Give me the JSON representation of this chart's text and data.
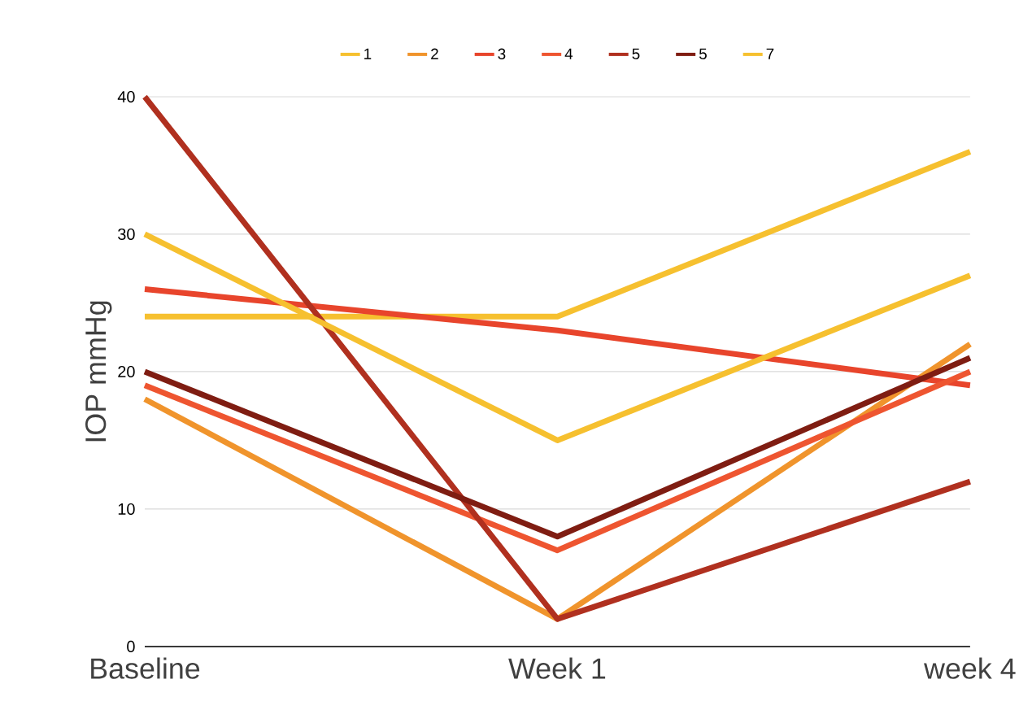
{
  "chart_data": {
    "type": "line",
    "ylabel": "IOP mmHg",
    "categories": [
      "Baseline",
      "Week 1",
      "week 4"
    ],
    "ylim": [
      0,
      40
    ],
    "yticks": [
      0,
      10,
      20,
      30,
      40
    ],
    "grid": "y",
    "legend": "top",
    "marker": "none",
    "line_style": "solid",
    "series": [
      {
        "name": "1",
        "color": "#f6c02f",
        "values": [
          24,
          24,
          36
        ]
      },
      {
        "name": "2",
        "color": "#f0942c",
        "values": [
          18,
          2,
          22
        ]
      },
      {
        "name": "3",
        "color": "#e8452c",
        "values": [
          26,
          23,
          19
        ]
      },
      {
        "name": "4",
        "color": "#ee5530",
        "values": [
          19,
          7,
          20
        ]
      },
      {
        "name": "5",
        "color": "#b0301f",
        "values": [
          40,
          2,
          12
        ]
      },
      {
        "name": "5",
        "color": "#7f1d12",
        "values": [
          20,
          8,
          21
        ]
      },
      {
        "name": "7",
        "color": "#f6c02f",
        "values": [
          30,
          15,
          27
        ]
      }
    ]
  }
}
